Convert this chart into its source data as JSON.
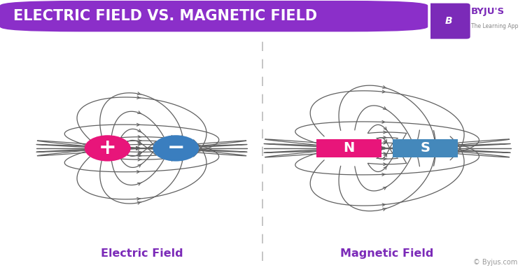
{
  "title": "ELECTRIC FIELD VS. MAGNETIC FIELD",
  "title_bg_color": "#8B2FC9",
  "title_text_color": "#FFFFFF",
  "bg_color": "#FFFFFF",
  "field_line_color": "#606060",
  "divider_color": "#BBBBBB",
  "label_color": "#7B2AB8",
  "label_electric": "Electric Field",
  "label_magnetic": "Magnetic Field",
  "pos_charge_color": "#E8157A",
  "neg_charge_color": "#3A7EBF",
  "north_color": "#E8157A",
  "south_color": "#4488BB",
  "byju_color": "#7B2AB8",
  "byju_bg": "#7B2AB8",
  "copyright": "© Byjus.com"
}
